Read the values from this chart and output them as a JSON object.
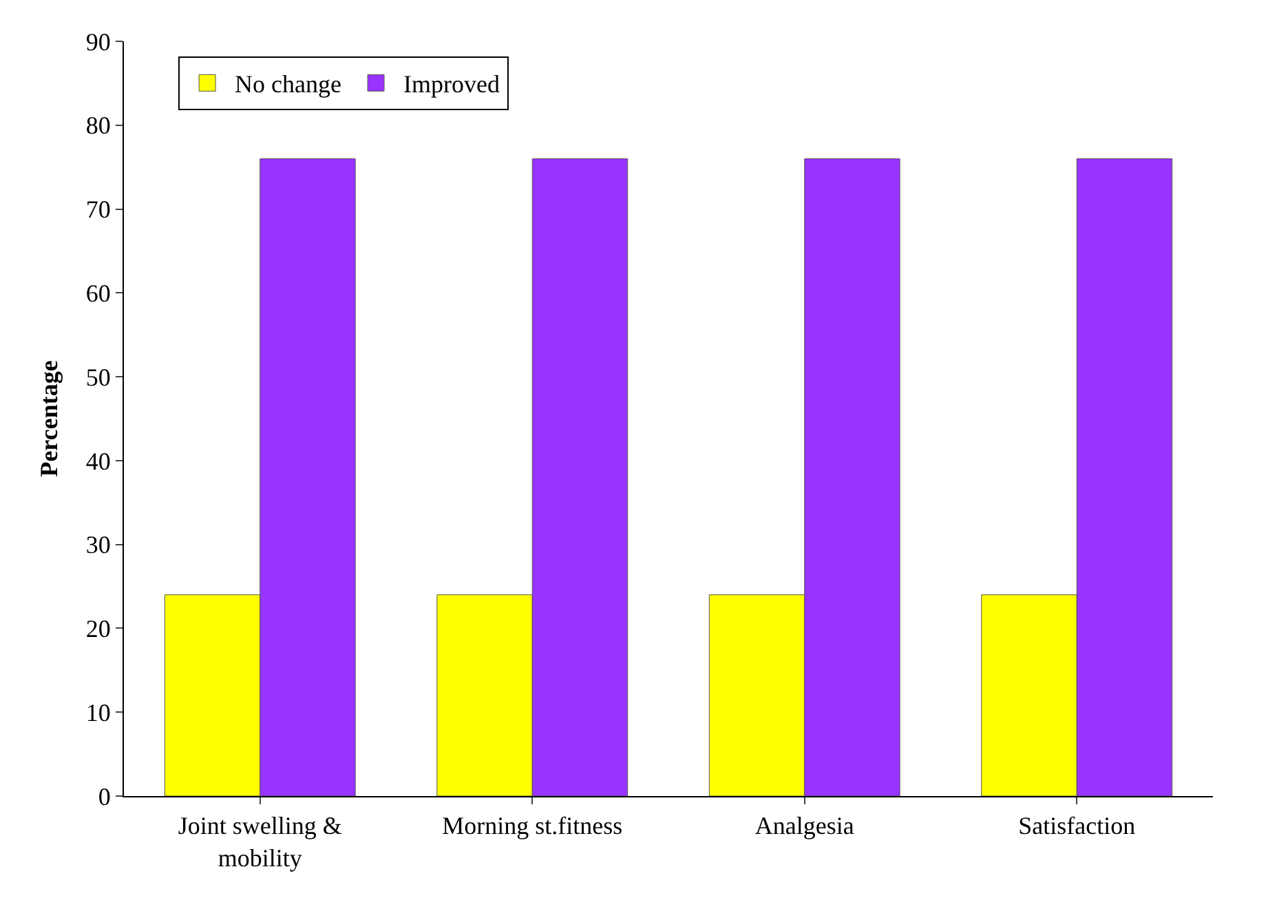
{
  "chart_data": {
    "type": "bar",
    "ylabel": "Percentage",
    "categories": [
      "Joint swelling &\nmobility",
      "Morning st.fitness",
      "Analgesia",
      "Satisfaction"
    ],
    "series": [
      {
        "name": "No change",
        "color": "#ffff00",
        "values": [
          24,
          24,
          24,
          24
        ]
      },
      {
        "name": "Improved",
        "color": "#9933ff",
        "values": [
          76,
          76,
          76,
          76
        ]
      }
    ],
    "ylim": [
      0,
      90
    ],
    "yticks": [
      0,
      10,
      20,
      30,
      40,
      50,
      60,
      70,
      80,
      90
    ],
    "grid": false,
    "legend": "top left"
  }
}
